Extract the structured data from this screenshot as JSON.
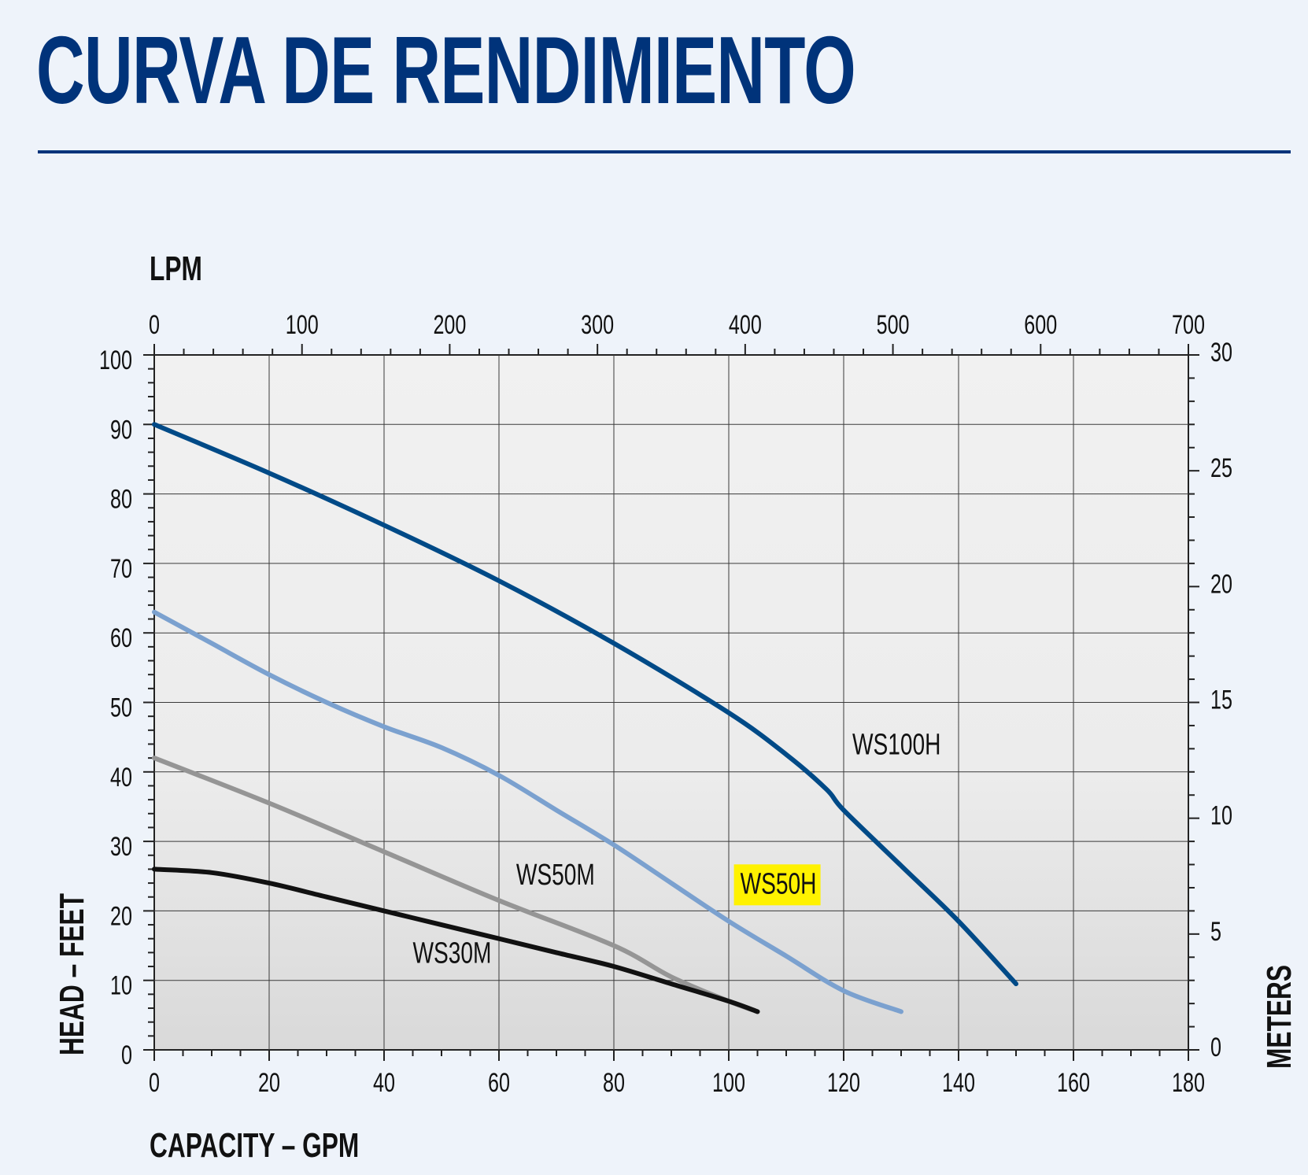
{
  "page": {
    "title": "CURVA DE RENDIMIENTO"
  },
  "chart_data": {
    "type": "line",
    "title": "CURVA DE RENDIMIENTO",
    "xlabel": "CAPACITY – GPM",
    "ylabel": "HEAD – FEET",
    "x2label": "LPM",
    "y2label": "METERS",
    "xlim": [
      0,
      180
    ],
    "ylim": [
      0,
      100
    ],
    "x2lim": [
      0,
      700
    ],
    "y2lim": [
      0,
      30
    ],
    "xticks": [
      0,
      20,
      40,
      60,
      80,
      100,
      120,
      140,
      160,
      180
    ],
    "yticks": [
      0,
      10,
      20,
      30,
      40,
      50,
      60,
      70,
      80,
      90,
      100
    ],
    "x2ticks": [
      0,
      100,
      200,
      300,
      400,
      500,
      600,
      700
    ],
    "y2ticks": [
      0,
      5,
      10,
      15,
      20,
      25,
      30
    ],
    "grid": true,
    "series": [
      {
        "name": "WS100H",
        "color": "#004a87",
        "x": [
          0,
          20,
          40,
          60,
          80,
          100,
          110,
          117,
          120,
          130,
          140,
          150
        ],
        "y": [
          90,
          83,
          75.5,
          67.5,
          58.5,
          48.5,
          42.5,
          37.5,
          34.5,
          26.5,
          18.5,
          9.5
        ]
      },
      {
        "name": "WS50H",
        "color": "#7ba1cf",
        "highlight_color": "#fff200",
        "x": [
          0,
          10,
          20,
          30,
          40,
          50,
          60,
          70,
          80,
          90,
          100,
          110,
          120,
          130
        ],
        "y": [
          63,
          58.5,
          54,
          50,
          46.5,
          43.5,
          39.5,
          34.5,
          29.5,
          24,
          18.5,
          13.5,
          8.5,
          5.5
        ]
      },
      {
        "name": "WS50M",
        "color": "#959595",
        "x": [
          0,
          20,
          40,
          60,
          80,
          90,
          100,
          105
        ],
        "y": [
          42,
          35.5,
          28.5,
          21.5,
          15,
          10.5,
          7,
          5.5
        ]
      },
      {
        "name": "WS30M",
        "color": "#111111",
        "x": [
          0,
          10,
          20,
          30,
          40,
          50,
          60,
          70,
          80,
          90,
          100,
          105
        ],
        "y": [
          26,
          25.5,
          24,
          22,
          20,
          18,
          16,
          14,
          12,
          9.5,
          7,
          5.5
        ]
      }
    ]
  }
}
